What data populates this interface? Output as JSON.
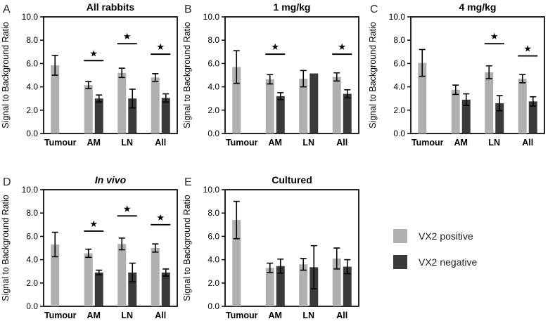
{
  "figure": {
    "star_glyph": "★",
    "ylabel": "Signal to Background Ratio"
  },
  "colors": {
    "positive": "#b0b0b0",
    "negative": "#3a3a3a",
    "axis": "#000000"
  },
  "legend": {
    "items": [
      {
        "key": "positive",
        "label": "VX2 positive"
      },
      {
        "key": "negative",
        "label": "VX2 negative"
      }
    ]
  },
  "chart_data": [
    {
      "type": "bar",
      "letter": "A",
      "title": "All rabbits",
      "italic_title": false,
      "xlabel": "",
      "ylabel": "Signal to Background Ratio",
      "ylim": [
        0,
        10
      ],
      "yticks": [
        "0.0",
        "2.0",
        "4.0",
        "6.0",
        "8.0",
        "10.0"
      ],
      "grid": false,
      "categories": [
        "Tumour",
        "AM",
        "LN",
        "All"
      ],
      "series": [
        {
          "name": "VX2 positive",
          "values": [
            5.85,
            4.15,
            5.2,
            4.8
          ],
          "errors": [
            0.85,
            0.3,
            0.4,
            0.33
          ]
        },
        {
          "name": "VX2 negative",
          "values": [
            null,
            3.0,
            3.0,
            3.05
          ],
          "errors": [
            null,
            0.3,
            0.8,
            0.35
          ]
        }
      ],
      "significance": [
        {
          "category": "AM",
          "line_y": 6.25
        },
        {
          "category": "LN",
          "line_y": 7.7
        },
        {
          "category": "All",
          "line_y": 6.8
        }
      ]
    },
    {
      "type": "bar",
      "letter": "B",
      "title": "1 mg/kg",
      "italic_title": false,
      "xlabel": "",
      "ylabel": "Signal to Background Ratio",
      "ylim": [
        0,
        10
      ],
      "yticks": [
        "0.0",
        "2.0",
        "4.0",
        "6.0",
        "8.0",
        "10.0"
      ],
      "grid": false,
      "categories": [
        "Tumour",
        "AM",
        "LN",
        "All"
      ],
      "series": [
        {
          "name": "VX2 positive",
          "values": [
            5.7,
            4.65,
            4.7,
            4.85
          ],
          "errors": [
            1.4,
            0.4,
            0.7,
            0.35
          ]
        },
        {
          "name": "VX2 negative",
          "values": [
            null,
            3.2,
            5.15,
            3.4
          ],
          "errors": [
            null,
            0.3,
            null,
            0.35
          ]
        }
      ],
      "significance": [
        {
          "category": "AM",
          "line_y": 6.8
        },
        {
          "category": "All",
          "line_y": 6.8
        }
      ]
    },
    {
      "type": "bar",
      "letter": "C",
      "title": "4 mg/kg",
      "italic_title": false,
      "xlabel": "",
      "ylabel": "Signal to Background Ratio",
      "ylim": [
        0,
        10
      ],
      "yticks": [
        "0.0",
        "2.0",
        "4.0",
        "6.0",
        "8.0",
        "10.0"
      ],
      "grid": false,
      "categories": [
        "Tumour",
        "AM",
        "LN",
        "All"
      ],
      "series": [
        {
          "name": "VX2 positive",
          "values": [
            6.05,
            3.75,
            5.25,
            4.7
          ],
          "errors": [
            1.15,
            0.4,
            0.55,
            0.35
          ]
        },
        {
          "name": "VX2 negative",
          "values": [
            null,
            2.9,
            2.6,
            2.75
          ],
          "errors": [
            null,
            0.5,
            0.65,
            0.4
          ]
        }
      ],
      "significance": [
        {
          "category": "LN",
          "line_y": 7.7
        },
        {
          "category": "All",
          "line_y": 6.65
        }
      ]
    },
    {
      "type": "bar",
      "letter": "D",
      "title": "In vivo",
      "italic_title": true,
      "xlabel": "",
      "ylabel": "Signal to Background Ratio",
      "ylim": [
        0,
        10
      ],
      "yticks": [
        "0.0",
        "2.0",
        "4.0",
        "6.0",
        "8.0",
        "10.0"
      ],
      "grid": false,
      "categories": [
        "Tumour",
        "AM",
        "LN",
        "All"
      ],
      "series": [
        {
          "name": "VX2 positive",
          "values": [
            5.3,
            4.55,
            5.35,
            5.0
          ],
          "errors": [
            1.05,
            0.35,
            0.5,
            0.35
          ]
        },
        {
          "name": "VX2 negative",
          "values": [
            null,
            2.9,
            2.9,
            2.9
          ],
          "errors": [
            null,
            0.2,
            0.8,
            0.3
          ]
        }
      ],
      "significance": [
        {
          "category": "AM",
          "line_y": 6.45
        },
        {
          "category": "LN",
          "line_y": 7.75
        },
        {
          "category": "All",
          "line_y": 7.0
        }
      ]
    },
    {
      "type": "bar",
      "letter": "E",
      "title": "Cultured",
      "italic_title": false,
      "xlabel": "",
      "ylabel": "Signal to Background Ratio",
      "ylim": [
        0,
        10
      ],
      "yticks": [
        "0.0",
        "2.0",
        "4.0",
        "6.0",
        "8.0",
        "10.0"
      ],
      "grid": false,
      "categories": [
        "Tumour",
        "AM",
        "LN",
        "All"
      ],
      "series": [
        {
          "name": "VX2 positive",
          "values": [
            7.4,
            3.3,
            3.6,
            4.1
          ],
          "errors": [
            1.6,
            0.4,
            0.5,
            0.9
          ]
        },
        {
          "name": "VX2 negative",
          "values": [
            null,
            3.45,
            3.35,
            3.4
          ],
          "errors": [
            null,
            0.6,
            1.85,
            0.6
          ]
        }
      ],
      "significance": []
    }
  ]
}
